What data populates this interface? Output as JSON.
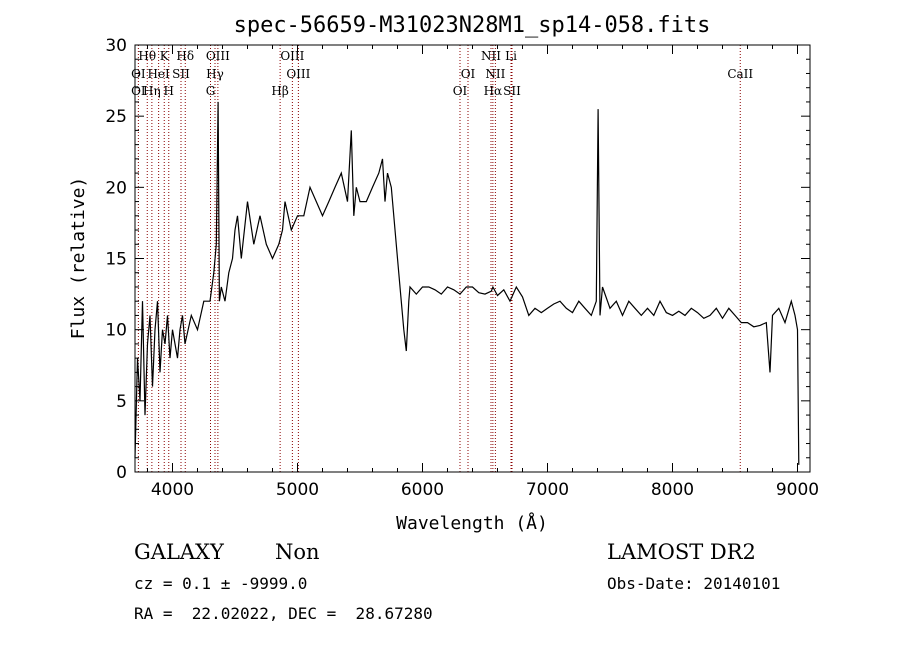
{
  "chart_data": {
    "type": "line",
    "title": "spec-56659-M31023N28M1_sp14-058.fits",
    "xlabel": "Wavelength (Å)",
    "ylabel": "Flux (relative)",
    "xlim": [
      3700,
      9100
    ],
    "ylim": [
      0,
      30
    ],
    "xticks": [
      4000,
      5000,
      6000,
      7000,
      8000,
      9000
    ],
    "yticks": [
      0,
      5,
      10,
      15,
      20,
      25,
      30
    ],
    "grid": false,
    "series": [
      {
        "x": [
          3700,
          3720,
          3740,
          3760,
          3780,
          3800,
          3820,
          3840,
          3860,
          3880,
          3900,
          3920,
          3940,
          3960,
          3980,
          4000,
          4020,
          4040,
          4060,
          4080,
          4100,
          4150,
          4200,
          4250,
          4300,
          4330,
          4350,
          4365,
          4375,
          4390,
          4420,
          4450,
          4480,
          4500,
          4520,
          4550,
          4600,
          4650,
          4700,
          4750,
          4800,
          4850,
          4880,
          4900,
          4950,
          5000,
          5050,
          5100,
          5150,
          5200,
          5250,
          5300,
          5350,
          5400,
          5430,
          5450,
          5470,
          5500,
          5550,
          5600,
          5650,
          5680,
          5700,
          5720,
          5750,
          5800,
          5820,
          5850,
          5870,
          5890,
          5900,
          5950,
          6000,
          6050,
          6100,
          6150,
          6200,
          6250,
          6300,
          6350,
          6400,
          6450,
          6500,
          6550,
          6563,
          6600,
          6650,
          6700,
          6750,
          6800,
          6850,
          6900,
          6950,
          7000,
          7050,
          7100,
          7150,
          7200,
          7250,
          7300,
          7350,
          7390,
          7405,
          7420,
          7440,
          7500,
          7550,
          7600,
          7650,
          7700,
          7750,
          7800,
          7850,
          7900,
          7950,
          8000,
          8050,
          8100,
          8150,
          8200,
          8250,
          8300,
          8350,
          8400,
          8450,
          8500,
          8550,
          8600,
          8650,
          8700,
          8750,
          8780,
          8800,
          8850,
          8900,
          8950,
          8980,
          9000,
          9010
        ],
        "y": [
          1,
          8,
          5,
          12,
          4,
          9,
          11,
          6,
          10,
          12,
          7,
          10,
          9,
          11,
          8,
          10,
          9,
          8,
          10,
          11,
          9,
          11,
          10,
          12,
          12,
          14,
          16,
          26,
          12,
          13,
          12,
          14,
          15,
          17,
          18,
          15,
          19,
          16,
          18,
          16,
          15,
          16,
          17,
          19,
          17,
          18,
          18,
          20,
          19,
          18,
          19,
          20,
          21,
          19,
          24,
          18,
          20,
          19,
          19,
          20,
          21,
          22,
          19,
          21,
          20,
          15,
          13,
          10,
          8.5,
          12,
          13,
          12.5,
          13,
          13,
          12.8,
          12.5,
          13,
          12.8,
          12.5,
          13,
          13,
          12.6,
          12.5,
          12.7,
          13,
          12.4,
          12.8,
          12,
          13,
          12.3,
          11,
          11.5,
          11.2,
          11.5,
          11.8,
          12,
          11.5,
          11.2,
          12,
          11.5,
          11,
          12,
          25.5,
          11,
          13,
          11.5,
          12,
          11,
          12,
          11.5,
          11,
          11.5,
          11,
          12,
          11.2,
          11,
          11.3,
          11,
          11.5,
          11.2,
          10.8,
          11,
          11.5,
          10.8,
          11.5,
          11,
          10.5,
          10.5,
          10.2,
          10.3,
          10.5,
          7,
          11,
          11.5,
          10.5,
          12,
          11,
          10,
          0.5
        ]
      }
    ],
    "spectral_lines": [
      {
        "label": "Hθ",
        "x": 3798,
        "row": 0
      },
      {
        "label": "K",
        "x": 3934,
        "row": 0
      },
      {
        "label": "Hδ",
        "x": 4102,
        "row": 0
      },
      {
        "label": "OIII",
        "x": 4363,
        "row": 0
      },
      {
        "label": "OIII",
        "x": 4959,
        "row": 0
      },
      {
        "label": "NII",
        "x": 6548,
        "row": 0
      },
      {
        "label": "Li",
        "x": 6708,
        "row": 0
      },
      {
        "label": "OI",
        "x": 3727,
        "row": 1
      },
      {
        "label": "HeI",
        "x": 3889,
        "row": 1
      },
      {
        "label": "SII",
        "x": 4068,
        "row": 1
      },
      {
        "label": "Hγ",
        "x": 4340,
        "row": 1
      },
      {
        "label": "OIII",
        "x": 5007,
        "row": 1
      },
      {
        "label": "OI",
        "x": 6364,
        "row": 1
      },
      {
        "label": "NII",
        "x": 6583,
        "row": 1
      },
      {
        "label": "CaII",
        "x": 8542,
        "row": 1
      },
      {
        "label": "OI",
        "x": 3727,
        "row": 2
      },
      {
        "label": "Hη",
        "x": 3835,
        "row": 2
      },
      {
        "label": "H",
        "x": 3970,
        "row": 2
      },
      {
        "label": "G",
        "x": 4304,
        "row": 2
      },
      {
        "label": "Hβ",
        "x": 4861,
        "row": 2
      },
      {
        "label": "OI",
        "x": 6300,
        "row": 2
      },
      {
        "label": "Hα",
        "x": 6563,
        "row": 2
      },
      {
        "label": "SII",
        "x": 6716,
        "row": 2
      }
    ],
    "line_positions": [
      3727,
      3798,
      3835,
      3889,
      3934,
      3970,
      4068,
      4102,
      4304,
      4340,
      4363,
      4861,
      4959,
      5007,
      6300,
      6364,
      6548,
      6563,
      6583,
      6708,
      6716,
      8542
    ]
  },
  "info": {
    "class_label": "GALAXY",
    "subclass_label": "Non",
    "cz_line": "cz = 0.1 ± -9999.0",
    "coords_line": "RA =  22.02022, DEC =  28.67280",
    "survey_label": "LAMOST DR2",
    "obs_date_line": "Obs-Date: 20140101"
  },
  "colors": {
    "spectrum": "#000000",
    "lines": "#8b0000",
    "axes": "#000000"
  }
}
